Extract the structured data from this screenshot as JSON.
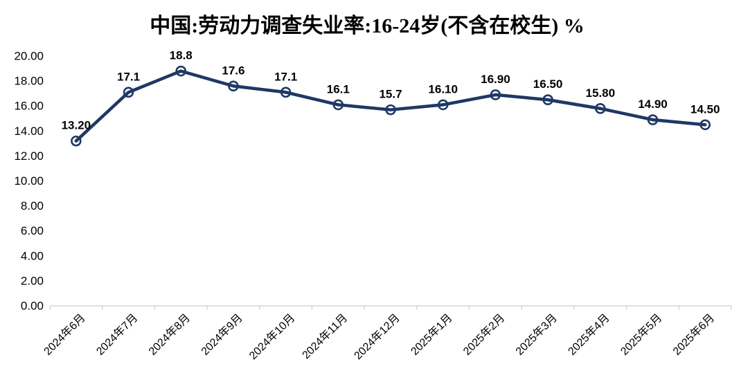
{
  "chart_data": {
    "type": "line",
    "title": "中国:劳动力调查失业率:16-24岁(不含在校生) %",
    "categories": [
      "2024年6月",
      "2024年7月",
      "2024年8月",
      "2024年9月",
      "2024年10月",
      "2024年11月",
      "2024年12月",
      "2025年1月",
      "2025年2月",
      "2025年3月",
      "2025年4月",
      "2025年5月",
      "2025年6月"
    ],
    "values": [
      13.2,
      17.1,
      18.8,
      17.6,
      17.1,
      16.1,
      15.7,
      16.1,
      16.9,
      16.5,
      15.8,
      14.9,
      14.5
    ],
    "point_labels": [
      "13.20",
      "17.1",
      "18.8",
      "17.6",
      "17.1",
      "16.1",
      "15.7",
      "16.10",
      "16.90",
      "16.50",
      "15.80",
      "14.90",
      "14.50"
    ],
    "y_tick_labels": [
      "0.00",
      "2.00",
      "4.00",
      "6.00",
      "8.00",
      "10.00",
      "12.00",
      "14.00",
      "16.00",
      "18.00",
      "20.00"
    ],
    "ylim": [
      0,
      20
    ],
    "y_tick_step": 2,
    "xlabel": "",
    "ylabel": "",
    "grid": false,
    "legend_position": "none",
    "colors": {
      "line": "#1f3864",
      "marker_ring": "#1f3864",
      "axis": "#d6d6d6",
      "text": "#000000",
      "background": "#ffffff"
    }
  }
}
